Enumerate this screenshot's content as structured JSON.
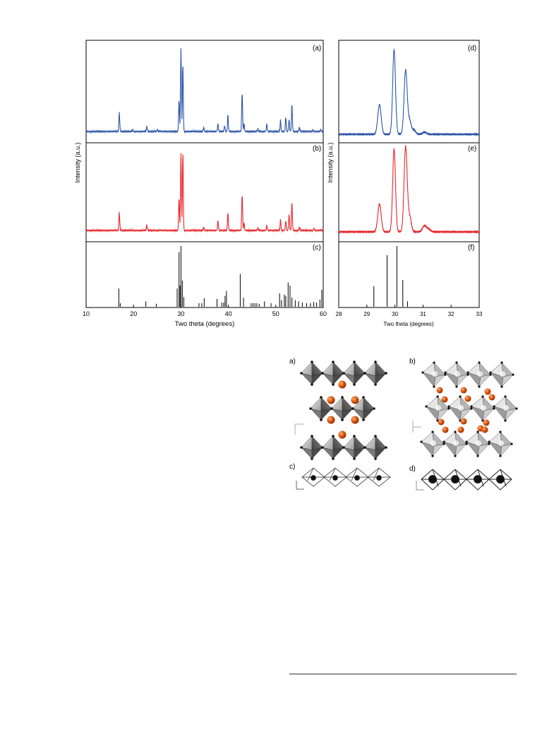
{
  "figure_xrd": {
    "ylabel": "Intensity (a.u.)",
    "xlabel_left": "Two theta (degrees)",
    "xlabel_right": "Two theta (degrees)",
    "panel_labels": [
      "(a)",
      "(b)",
      "(c)",
      "(d)",
      "(e)",
      "(f)"
    ],
    "colors": {
      "blue": "#2e55a8",
      "red": "#e8262b",
      "black": "#000000"
    }
  },
  "chart_data": [
    {
      "type": "line",
      "panel": "(a)",
      "xlim": [
        10,
        60
      ],
      "x_ticks": [
        "10",
        "20",
        "30",
        "40",
        "50",
        "60"
      ],
      "peaks": [
        {
          "x": 17.0,
          "y": 0.23
        },
        {
          "x": 19.8,
          "y": 0.02
        },
        {
          "x": 22.8,
          "y": 0.06
        },
        {
          "x": 25.0,
          "y": 0.02
        },
        {
          "x": 29.6,
          "y": 0.37
        },
        {
          "x": 30.0,
          "y": 1.0
        },
        {
          "x": 30.4,
          "y": 0.81
        },
        {
          "x": 34.8,
          "y": 0.05
        },
        {
          "x": 37.8,
          "y": 0.09
        },
        {
          "x": 39.2,
          "y": 0.07
        },
        {
          "x": 39.9,
          "y": 0.2
        },
        {
          "x": 42.9,
          "y": 0.47
        },
        {
          "x": 43.3,
          "y": 0.09
        },
        {
          "x": 46.2,
          "y": 0.03
        },
        {
          "x": 48.1,
          "y": 0.09
        },
        {
          "x": 51.0,
          "y": 0.13
        },
        {
          "x": 52.1,
          "y": 0.17
        },
        {
          "x": 52.8,
          "y": 0.14
        },
        {
          "x": 53.4,
          "y": 0.33
        },
        {
          "x": 55.0,
          "y": 0.05
        },
        {
          "x": 57.8,
          "y": 0.02
        },
        {
          "x": 59.5,
          "y": 0.02
        }
      ]
    },
    {
      "type": "line",
      "panel": "(b)",
      "xlim": [
        10,
        60
      ],
      "peaks": [
        {
          "x": 17.0,
          "y": 0.23
        },
        {
          "x": 22.8,
          "y": 0.07
        },
        {
          "x": 29.6,
          "y": 0.4
        },
        {
          "x": 30.0,
          "y": 0.98
        },
        {
          "x": 30.4,
          "y": 1.0
        },
        {
          "x": 34.8,
          "y": 0.04
        },
        {
          "x": 37.8,
          "y": 0.12
        },
        {
          "x": 39.9,
          "y": 0.22
        },
        {
          "x": 42.9,
          "y": 0.46
        },
        {
          "x": 43.3,
          "y": 0.09
        },
        {
          "x": 46.2,
          "y": 0.03
        },
        {
          "x": 48.1,
          "y": 0.06
        },
        {
          "x": 51.0,
          "y": 0.13
        },
        {
          "x": 52.1,
          "y": 0.12
        },
        {
          "x": 52.8,
          "y": 0.2
        },
        {
          "x": 53.4,
          "y": 0.36
        },
        {
          "x": 55.0,
          "y": 0.04
        },
        {
          "x": 58.0,
          "y": 0.03
        }
      ]
    },
    {
      "type": "bar",
      "panel": "(c)",
      "xlim": [
        10,
        60
      ],
      "sticks": [
        {
          "x": 16.9,
          "y": 0.3
        },
        {
          "x": 17.2,
          "y": 0.06
        },
        {
          "x": 22.6,
          "y": 0.09
        },
        {
          "x": 24.8,
          "y": 0.05
        },
        {
          "x": 29.2,
          "y": 0.3
        },
        {
          "x": 29.6,
          "y": 0.9
        },
        {
          "x": 29.8,
          "y": 0.35
        },
        {
          "x": 30.0,
          "y": 1.0
        },
        {
          "x": 30.3,
          "y": 0.43
        },
        {
          "x": 30.6,
          "y": 0.16
        },
        {
          "x": 33.8,
          "y": 0.06
        },
        {
          "x": 34.4,
          "y": 0.06
        },
        {
          "x": 34.9,
          "y": 0.14
        },
        {
          "x": 37.6,
          "y": 0.13
        },
        {
          "x": 38.6,
          "y": 0.07
        },
        {
          "x": 39.0,
          "y": 0.07
        },
        {
          "x": 39.3,
          "y": 0.18
        },
        {
          "x": 39.6,
          "y": 0.26
        },
        {
          "x": 42.5,
          "y": 0.54
        },
        {
          "x": 43.2,
          "y": 0.15
        },
        {
          "x": 44.8,
          "y": 0.06
        },
        {
          "x": 45.2,
          "y": 0.06
        },
        {
          "x": 45.6,
          "y": 0.06
        },
        {
          "x": 46.0,
          "y": 0.06
        },
        {
          "x": 46.5,
          "y": 0.05
        },
        {
          "x": 47.6,
          "y": 0.09
        },
        {
          "x": 49.0,
          "y": 0.06
        },
        {
          "x": 50.8,
          "y": 0.22
        },
        {
          "x": 51.2,
          "y": 0.11
        },
        {
          "x": 51.8,
          "y": 0.2
        },
        {
          "x": 52.1,
          "y": 0.18
        },
        {
          "x": 52.6,
          "y": 0.4
        },
        {
          "x": 53.0,
          "y": 0.35
        },
        {
          "x": 53.4,
          "y": 0.15
        },
        {
          "x": 54.1,
          "y": 0.11
        },
        {
          "x": 54.8,
          "y": 0.09
        },
        {
          "x": 55.6,
          "y": 0.07
        },
        {
          "x": 56.5,
          "y": 0.06
        },
        {
          "x": 57.3,
          "y": 0.06
        },
        {
          "x": 58.0,
          "y": 0.08
        },
        {
          "x": 58.6,
          "y": 0.07
        },
        {
          "x": 59.3,
          "y": 0.12
        },
        {
          "x": 59.7,
          "y": 0.28
        }
      ]
    },
    {
      "type": "line",
      "panel": "(d)",
      "xlim": [
        28,
        33
      ],
      "peaks": [
        {
          "x": 29.45,
          "y": 0.35,
          "w": 0.06
        },
        {
          "x": 29.97,
          "y": 1.0,
          "w": 0.05
        },
        {
          "x": 30.38,
          "y": 0.75,
          "w": 0.055
        },
        {
          "x": 30.52,
          "y": 0.16,
          "w": 0.06
        },
        {
          "x": 30.68,
          "y": 0.05,
          "w": 0.06
        },
        {
          "x": 31.05,
          "y": 0.025,
          "w": 0.07
        }
      ]
    },
    {
      "type": "line",
      "panel": "(e)",
      "xlim": [
        28,
        33
      ],
      "peaks": [
        {
          "x": 29.45,
          "y": 0.33,
          "w": 0.06
        },
        {
          "x": 29.97,
          "y": 0.98,
          "w": 0.05
        },
        {
          "x": 30.38,
          "y": 1.0,
          "w": 0.055
        },
        {
          "x": 30.52,
          "y": 0.18,
          "w": 0.06
        },
        {
          "x": 31.05,
          "y": 0.07,
          "w": 0.07
        },
        {
          "x": 31.2,
          "y": 0.03,
          "w": 0.07
        }
      ]
    },
    {
      "type": "bar",
      "panel": "(f)",
      "xlim": [
        28,
        33
      ],
      "x_ticks": [
        "28",
        "29",
        "30",
        "31",
        "32",
        "33"
      ],
      "sticks": [
        {
          "x": 29.25,
          "y": 0.34
        },
        {
          "x": 29.72,
          "y": 0.85
        },
        {
          "x": 30.07,
          "y": 1.0
        },
        {
          "x": 30.28,
          "y": 0.44
        },
        {
          "x": 30.45,
          "y": 0.09
        }
      ]
    }
  ],
  "figure_structures": {
    "panel_labels": [
      "a)",
      "b)",
      "c)",
      "d)"
    ],
    "colors": {
      "cation": "#e05a10",
      "octahedron_light": "#d4d4d4",
      "octahedron_dark": "#6e6e6e",
      "vertex": "#111111"
    }
  }
}
